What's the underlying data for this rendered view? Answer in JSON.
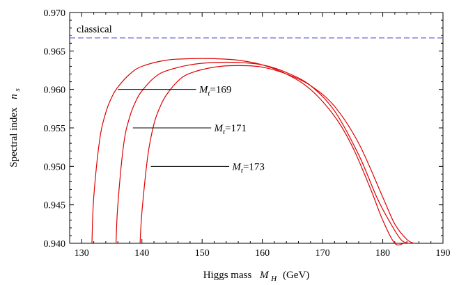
{
  "chart_data": {
    "type": "line",
    "title": "",
    "xlabel": {
      "prefix": "Higgs mass",
      "symbol": "M",
      "sub": "H",
      "suffix": "(GeV)"
    },
    "ylabel": {
      "prefix": "Spectral  index",
      "symbol": "n",
      "sub": "s"
    },
    "xlim": [
      128,
      190
    ],
    "ylim": [
      0.94,
      0.97
    ],
    "xticks": [
      130,
      140,
      150,
      160,
      170,
      180,
      190
    ],
    "xtick_labels": [
      "130",
      "140",
      "150",
      "160",
      "170",
      "180",
      "190"
    ],
    "yticks": [
      0.94,
      0.945,
      0.95,
      0.955,
      0.96,
      0.965,
      0.97
    ],
    "ytick_labels": [
      "0.940",
      "0.945",
      "0.950",
      "0.955",
      "0.960",
      "0.965",
      "0.970"
    ],
    "grid": false,
    "reference_line": {
      "label": "classical",
      "y": 0.9667,
      "color": "#5555dd",
      "style": "dashed"
    },
    "series_color": "#dd0000",
    "series": [
      {
        "Mt": "169",
        "x": [
          131.7,
          132.0,
          133.0,
          134.0,
          135.0,
          136.0,
          138.0,
          140.0,
          144.0,
          148.0,
          152.0,
          156.0,
          160.0,
          164.0,
          168.0,
          172.0,
          175.0,
          178.0,
          180.0,
          182.0,
          183.5
        ],
        "y": [
          0.94,
          0.946,
          0.9535,
          0.957,
          0.959,
          0.9603,
          0.962,
          0.963,
          0.9638,
          0.964,
          0.964,
          0.9638,
          0.9632,
          0.962,
          0.96,
          0.9565,
          0.9525,
          0.947,
          0.943,
          0.94,
          0.94
        ]
      },
      {
        "Mt": "171",
        "x": [
          135.7,
          136.0,
          137.0,
          138.0,
          139.0,
          140.0,
          142.0,
          144.0,
          148.0,
          152.0,
          156.0,
          160.0,
          164.0,
          168.0,
          172.0,
          176.0,
          179.0,
          181.0,
          183.0,
          184.3
        ],
        "y": [
          0.94,
          0.945,
          0.953,
          0.9565,
          0.9585,
          0.9598,
          0.9615,
          0.9624,
          0.9632,
          0.9635,
          0.9635,
          0.9632,
          0.9622,
          0.9605,
          0.9572,
          0.9515,
          0.946,
          0.943,
          0.9405,
          0.94
        ]
      },
      {
        "Mt": "173",
        "x": [
          139.7,
          140.0,
          141.0,
          142.0,
          143.0,
          144.0,
          146.0,
          148.0,
          152.0,
          156.0,
          160.0,
          164.0,
          168.0,
          172.0,
          176.0,
          180.0,
          182.0,
          184.0,
          185.2
        ],
        "y": [
          0.94,
          0.944,
          0.9515,
          0.9555,
          0.9577,
          0.9592,
          0.9611,
          0.9621,
          0.9629,
          0.9631,
          0.9629,
          0.962,
          0.9605,
          0.9578,
          0.953,
          0.946,
          0.9425,
          0.9405,
          0.94
        ]
      }
    ],
    "annotations": [
      {
        "symbol": "M",
        "sub": "t",
        "text": "=169",
        "line_x": [
          136.0,
          149.0
        ],
        "line_y": 0.96,
        "label_x": 149.5,
        "label_y": 0.96
      },
      {
        "symbol": "M",
        "sub": "t",
        "text": "=171",
        "line_x": [
          138.5,
          151.5
        ],
        "line_y": 0.955,
        "label_x": 152.0,
        "label_y": 0.955
      },
      {
        "symbol": "M",
        "sub": "t",
        "text": "=173",
        "line_x": [
          141.5,
          154.5
        ],
        "line_y": 0.95,
        "label_x": 155.0,
        "label_y": 0.95
      }
    ]
  }
}
